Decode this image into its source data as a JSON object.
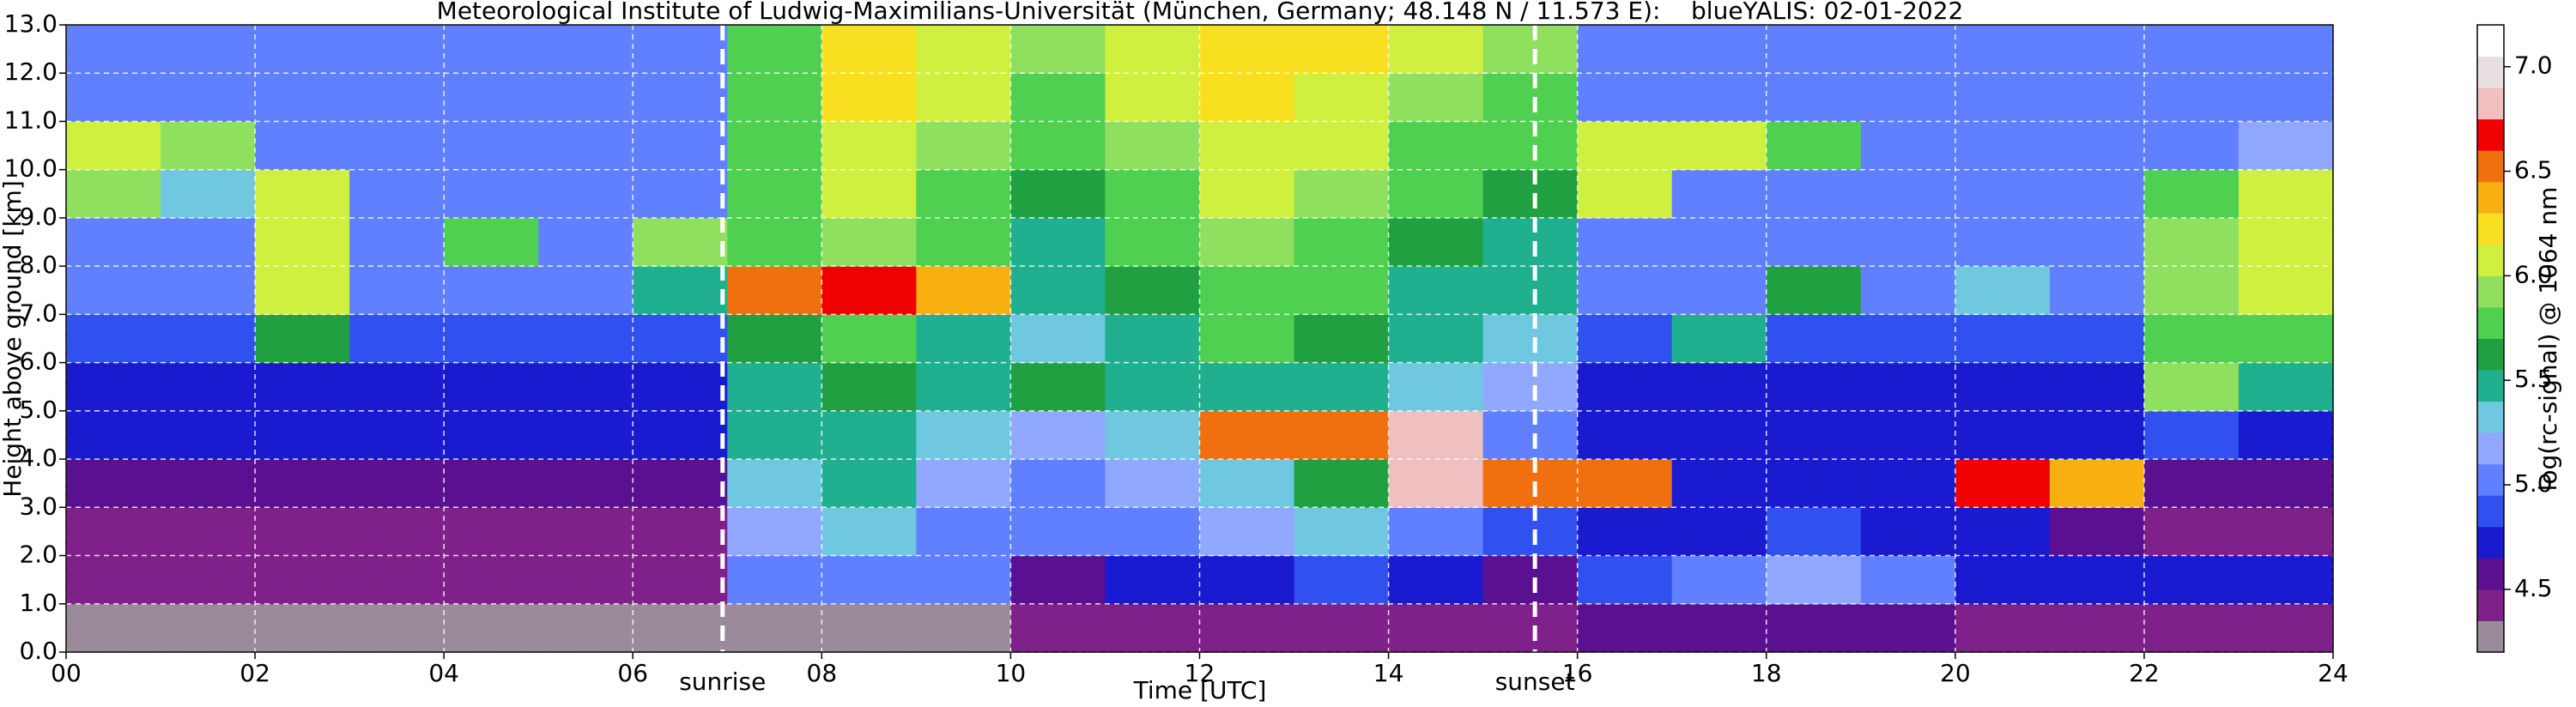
{
  "chart_data": {
    "type": "heatmap",
    "title": "Meteorological Institute of Ludwig-Maximilians-Universität (München, Germany; 48.148 N / 11.573 E):    blueYALIS: 02-01-2022",
    "x_label": "Time [UTC]",
    "y_label": "Height above ground [km]",
    "xlim": [
      0,
      24
    ],
    "ylim": [
      0,
      13
    ],
    "xticks": [
      {
        "value": 0,
        "label": "00"
      },
      {
        "value": 2,
        "label": "02"
      },
      {
        "value": 4,
        "label": "04"
      },
      {
        "value": 6,
        "label": "06"
      },
      {
        "value": 8,
        "label": "08"
      },
      {
        "value": 10,
        "label": "10"
      },
      {
        "value": 12,
        "label": "12"
      },
      {
        "value": 14,
        "label": "14"
      },
      {
        "value": 16,
        "label": "16"
      },
      {
        "value": 18,
        "label": "18"
      },
      {
        "value": 20,
        "label": "20"
      },
      {
        "value": 22,
        "label": "22"
      },
      {
        "value": 24,
        "label": "24"
      }
    ],
    "yticks": [
      {
        "value": 0,
        "label": "0.0"
      },
      {
        "value": 1,
        "label": "1.0"
      },
      {
        "value": 2,
        "label": "2.0"
      },
      {
        "value": 3,
        "label": "3.0"
      },
      {
        "value": 4,
        "label": "4.0"
      },
      {
        "value": 5,
        "label": "5.0"
      },
      {
        "value": 6,
        "label": "6.0"
      },
      {
        "value": 7,
        "label": "7.0"
      },
      {
        "value": 8,
        "label": "8.0"
      },
      {
        "value": 9,
        "label": "9.0"
      },
      {
        "value": 10,
        "label": "10.0"
      },
      {
        "value": 11,
        "label": "11.0"
      },
      {
        "value": 12,
        "label": "12.0"
      },
      {
        "value": 13,
        "label": "13.0"
      }
    ],
    "grid": true,
    "annotations": [
      {
        "text": "sunrise",
        "x": 6.95
      },
      {
        "text": "sunset",
        "x": 15.55
      }
    ],
    "x": [
      0.5,
      1.5,
      2.5,
      3.5,
      4.5,
      5.5,
      6.5,
      7.5,
      8.5,
      9.5,
      10.5,
      11.5,
      12.5,
      13.5,
      14.5,
      15.5,
      16.5,
      17.5,
      18.5,
      19.5,
      20.5,
      21.5,
      22.5,
      23.5
    ],
    "y": [
      0.5,
      1.5,
      2.5,
      3.5,
      4.5,
      5.5,
      6.5,
      7.5,
      8.5,
      9.5,
      10.5,
      11.5,
      12.5
    ],
    "z": [
      [
        4.3,
        4.3,
        4.3,
        4.3,
        4.3,
        4.3,
        4.3,
        4.3,
        4.3,
        4.3,
        4.4,
        4.4,
        4.4,
        4.4,
        4.5,
        4.5,
        4.6,
        4.6,
        4.6,
        4.6,
        4.5,
        4.5,
        4.5,
        4.5
      ],
      [
        4.4,
        4.4,
        4.4,
        4.4,
        4.4,
        4.4,
        4.4,
        5.0,
        5.1,
        5.0,
        4.6,
        4.7,
        4.8,
        4.9,
        4.7,
        4.6,
        4.9,
        5.1,
        5.2,
        5.1,
        4.8,
        4.8,
        4.7,
        4.7
      ],
      [
        4.5,
        4.5,
        4.5,
        4.5,
        4.5,
        4.5,
        4.5,
        5.2,
        5.3,
        5.1,
        5.0,
        5.1,
        5.2,
        5.3,
        5.0,
        4.9,
        4.7,
        4.8,
        4.9,
        4.8,
        4.7,
        4.6,
        4.5,
        4.5
      ],
      [
        4.6,
        4.6,
        4.6,
        4.6,
        4.6,
        4.6,
        4.6,
        5.3,
        5.4,
        5.2,
        5.1,
        5.2,
        5.3,
        5.6,
        6.8,
        6.6,
        6.5,
        4.7,
        4.7,
        4.7,
        6.7,
        6.4,
        4.6,
        4.6
      ],
      [
        4.7,
        4.7,
        4.7,
        4.7,
        4.7,
        4.7,
        4.7,
        5.4,
        5.5,
        5.3,
        5.2,
        5.3,
        6.6,
        6.5,
        6.8,
        5.1,
        4.7,
        4.7,
        4.7,
        4.7,
        4.7,
        4.7,
        4.9,
        4.8
      ],
      [
        4.8,
        4.8,
        4.8,
        4.8,
        4.8,
        4.8,
        4.8,
        5.5,
        5.6,
        5.4,
        5.6,
        5.4,
        5.5,
        5.4,
        5.3,
        5.2,
        4.8,
        4.8,
        4.8,
        4.8,
        4.8,
        4.8,
        5.9,
        5.5
      ],
      [
        4.9,
        4.9,
        5.6,
        4.9,
        4.9,
        4.9,
        4.9,
        5.6,
        5.7,
        5.5,
        5.3,
        5.5,
        5.7,
        5.6,
        5.4,
        5.3,
        4.9,
        5.4,
        4.9,
        4.9,
        4.9,
        4.9,
        5.7,
        5.8
      ],
      [
        5.0,
        5.0,
        6.1,
        5.0,
        5.0,
        5.0,
        5.5,
        6.6,
        6.7,
        6.4,
        5.4,
        5.6,
        5.8,
        5.7,
        5.5,
        5.4,
        5.0,
        5.0,
        5.6,
        5.0,
        5.3,
        5.0,
        5.9,
        6.0
      ],
      [
        5.0,
        5.0,
        6.0,
        5.0,
        5.8,
        5.0,
        5.9,
        5.8,
        5.9,
        5.7,
        5.5,
        5.7,
        5.9,
        5.8,
        5.6,
        5.5,
        5.0,
        5.0,
        5.0,
        5.0,
        5.0,
        5.0,
        5.9,
        6.0
      ],
      [
        5.9,
        5.3,
        6.0,
        5.1,
        5.1,
        5.1,
        5.1,
        5.7,
        6.0,
        5.8,
        5.6,
        5.8,
        6.0,
        5.9,
        5.7,
        5.6,
        6.1,
        5.1,
        5.1,
        5.1,
        5.1,
        5.1,
        5.8,
        6.1
      ],
      [
        6.1,
        5.9,
        5.1,
        5.1,
        5.1,
        5.1,
        5.1,
        5.7,
        6.1,
        5.9,
        5.7,
        5.9,
        6.1,
        6.0,
        5.8,
        5.7,
        6.0,
        6.0,
        5.8,
        5.1,
        5.1,
        5.1,
        5.1,
        5.2
      ],
      [
        5.1,
        5.1,
        5.1,
        5.1,
        5.1,
        5.1,
        5.1,
        5.8,
        6.2,
        6.0,
        5.8,
        6.0,
        6.2,
        6.1,
        5.9,
        5.8,
        5.1,
        5.1,
        5.1,
        5.1,
        5.1,
        5.1,
        5.1,
        5.1
      ],
      [
        5.1,
        5.1,
        5.1,
        5.1,
        5.1,
        5.1,
        5.1,
        5.8,
        6.3,
        6.1,
        5.9,
        6.1,
        6.3,
        6.2,
        6.0,
        5.9,
        5.1,
        5.1,
        5.1,
        5.1,
        5.1,
        5.1,
        5.1,
        5.1
      ]
    ],
    "colorbar": {
      "label": "log(rc-signal) @ 1064 nm",
      "lim": [
        4.2,
        7.2
      ],
      "ticks": [
        4.5,
        {
          "value": 5,
          "label": "5.0"
        },
        5.5,
        {
          "value": 6,
          "label": "6.0"
        },
        6.5,
        {
          "value": 7,
          "label": "7.0"
        }
      ],
      "colors": [
        "#9a8a9a",
        "#80208a",
        "#5a1090",
        "#1a1ad0",
        "#3050f0",
        "#6080ff",
        "#90a8ff",
        "#70c8e0",
        "#20b090",
        "#20a040",
        "#50d050",
        "#90e060",
        "#d0f040",
        "#f8e020",
        "#f8b010",
        "#f07010",
        "#f00000",
        "#f0c0c0",
        "#e8e0e0",
        "#ffffff"
      ]
    }
  }
}
